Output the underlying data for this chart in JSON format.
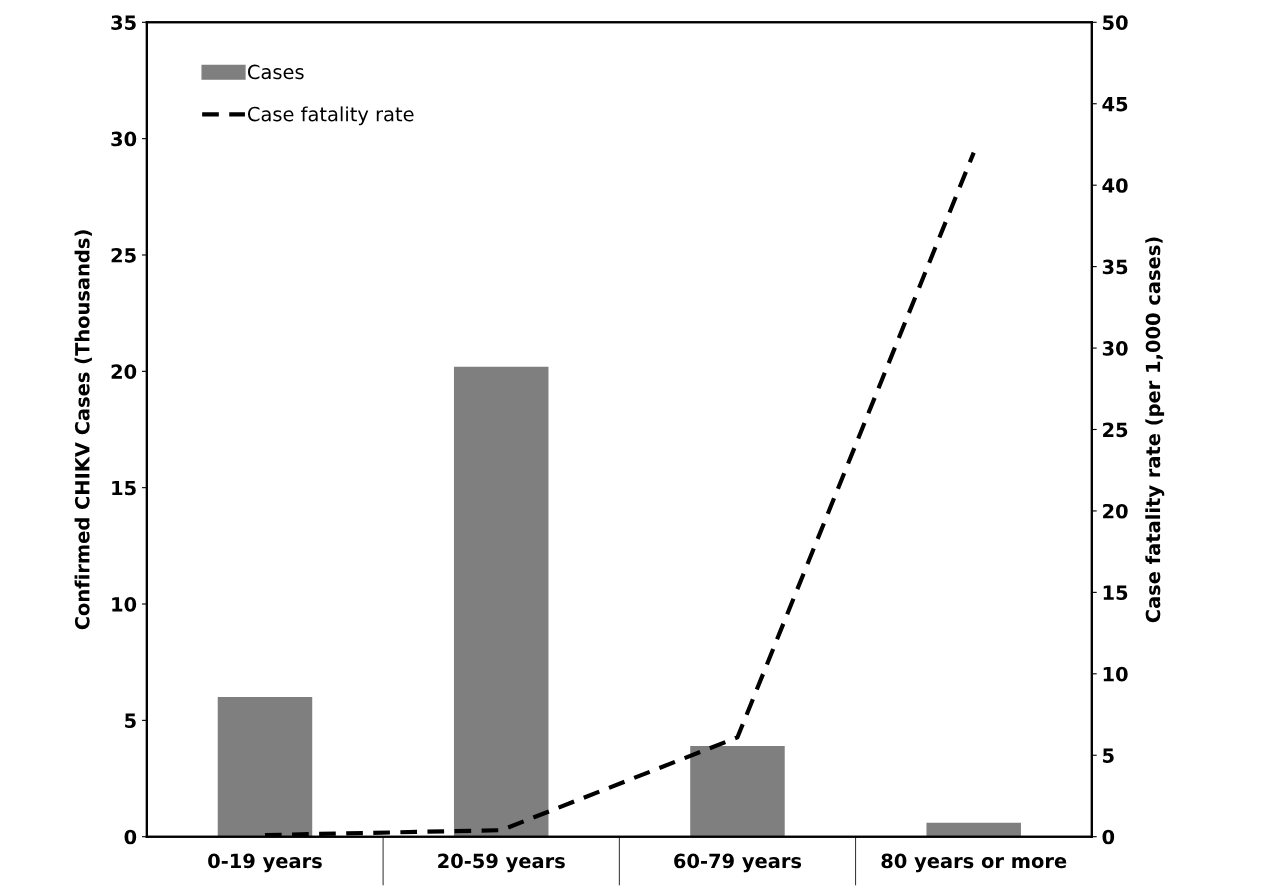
{
  "chart_data": {
    "type": "bar",
    "categories": [
      "0-19 years",
      "20-59 years",
      "60-79 years",
      "80 years or more"
    ],
    "ylabel": "Confirmed CHIKV Cases (Thousands)",
    "y2label": "Case fatality rate (per 1,000 cases)",
    "series": [
      {
        "name": "Cases",
        "color": "#7f7f7f",
        "values": [
          6.0,
          20.2,
          3.9,
          0.6
        ]
      },
      {
        "name": "Case fatality rate",
        "type": "line",
        "axis": "y2",
        "color": "#000000",
        "line_style": "dashed",
        "values": [
          0.1,
          0.4,
          6.1,
          42.0
        ]
      }
    ],
    "ylim": [
      0,
      35
    ],
    "yticks": [
      0,
      5,
      10,
      15,
      20,
      25,
      30,
      35
    ],
    "y2lim": [
      0,
      50
    ],
    "y2ticks": [
      0,
      5,
      10,
      15,
      20,
      25,
      30,
      35,
      40,
      45,
      50
    ],
    "legend": "top left",
    "grid": false
  }
}
